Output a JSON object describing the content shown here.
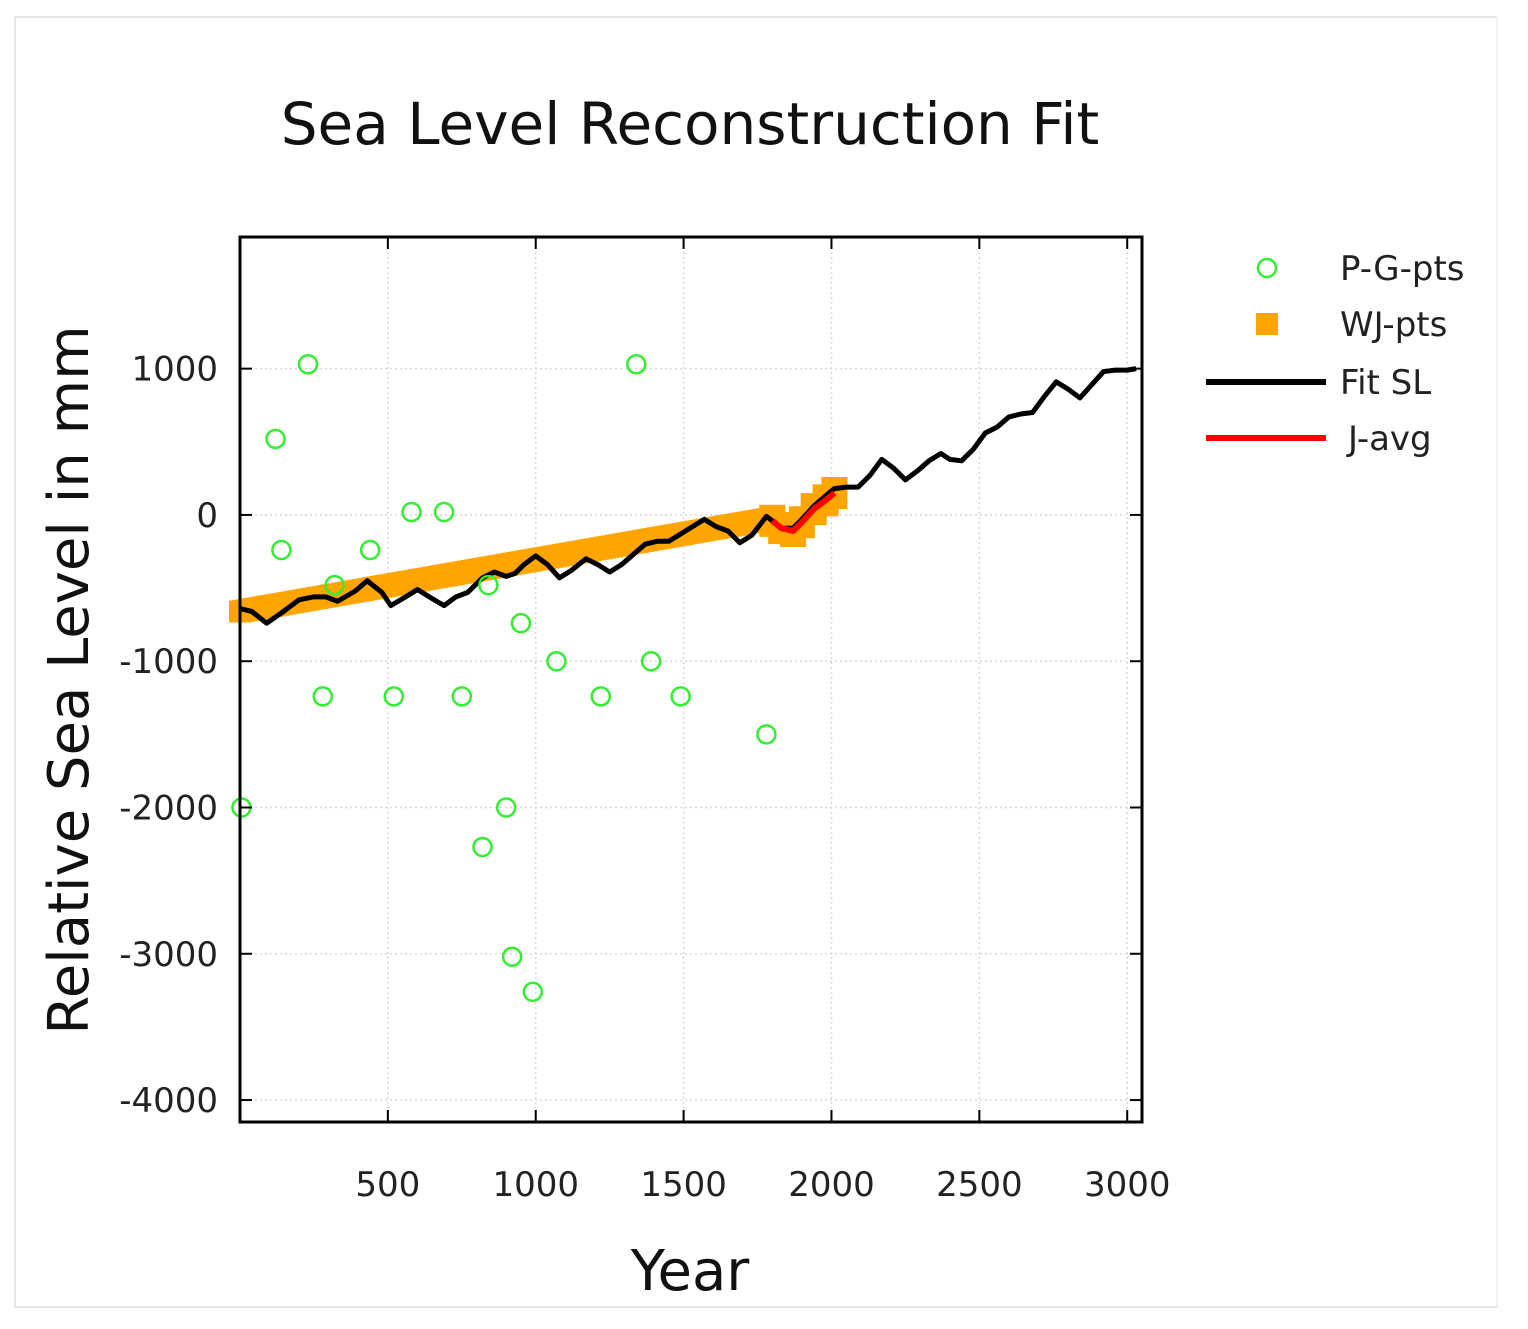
{
  "chart_data": {
    "type": "line",
    "title": "Sea Level Reconstruction Fit",
    "xlabel": "Year",
    "ylabel": "Relative Sea Level in mm",
    "xlim": [
      0,
      3050
    ],
    "ylim": [
      -4150,
      1900
    ],
    "x_ticks": [
      500,
      1000,
      1500,
      2000,
      2500,
      3000
    ],
    "x_tick_labels": [
      "500",
      "1000",
      "1500",
      "2000",
      "2500",
      "3000"
    ],
    "y_ticks": [
      1000,
      0,
      -1000,
      -2000,
      -3000,
      -4000
    ],
    "y_tick_labels": [
      "1000",
      "0",
      "-1000",
      "-2000",
      "-3000",
      "-4000"
    ],
    "grid": true,
    "legend_position": "right",
    "colors": {
      "pg": "#33ee33",
      "wj": "#ffa500",
      "fit": "#000000",
      "javg": "#ff0000"
    },
    "series": [
      {
        "name": "P-G-pts",
        "kind": "scatter-open-circle",
        "points": [
          [
            5,
            -2000
          ],
          [
            120,
            520
          ],
          [
            140,
            -240
          ],
          [
            230,
            1030
          ],
          [
            280,
            -1240
          ],
          [
            320,
            -480
          ],
          [
            440,
            -240
          ],
          [
            520,
            -1240
          ],
          [
            580,
            20
          ],
          [
            690,
            20
          ],
          [
            750,
            -1240
          ],
          [
            820,
            -2270
          ],
          [
            840,
            -480
          ],
          [
            900,
            -2000
          ],
          [
            920,
            -3020
          ],
          [
            950,
            -740
          ],
          [
            990,
            -3260
          ],
          [
            1070,
            -1000
          ],
          [
            1220,
            -1240
          ],
          [
            1340,
            1030
          ],
          [
            1390,
            -1000
          ],
          [
            1490,
            -1240
          ],
          [
            1780,
            -1500
          ]
        ]
      },
      {
        "name": "WJ-pts",
        "kind": "band-square-markers",
        "x_start": 0,
        "y_start": -660,
        "x_end": 1780,
        "y_end": -30
      },
      {
        "name": "Fit SL",
        "kind": "line",
        "points": [
          [
            0,
            -640
          ],
          [
            40,
            -660
          ],
          [
            90,
            -740
          ],
          [
            140,
            -670
          ],
          [
            200,
            -580
          ],
          [
            250,
            -560
          ],
          [
            290,
            -560
          ],
          [
            330,
            -590
          ],
          [
            390,
            -520
          ],
          [
            430,
            -450
          ],
          [
            480,
            -530
          ],
          [
            510,
            -620
          ],
          [
            560,
            -560
          ],
          [
            600,
            -510
          ],
          [
            640,
            -560
          ],
          [
            690,
            -620
          ],
          [
            730,
            -560
          ],
          [
            770,
            -530
          ],
          [
            820,
            -430
          ],
          [
            860,
            -390
          ],
          [
            900,
            -420
          ],
          [
            930,
            -400
          ],
          [
            960,
            -340
          ],
          [
            1000,
            -280
          ],
          [
            1040,
            -340
          ],
          [
            1080,
            -430
          ],
          [
            1120,
            -380
          ],
          [
            1170,
            -300
          ],
          [
            1210,
            -340
          ],
          [
            1250,
            -390
          ],
          [
            1290,
            -340
          ],
          [
            1330,
            -270
          ],
          [
            1370,
            -200
          ],
          [
            1410,
            -180
          ],
          [
            1450,
            -180
          ],
          [
            1490,
            -130
          ],
          [
            1530,
            -80
          ],
          [
            1570,
            -30
          ],
          [
            1610,
            -80
          ],
          [
            1650,
            -110
          ],
          [
            1690,
            -190
          ],
          [
            1730,
            -140
          ],
          [
            1780,
            -10
          ],
          [
            1800,
            -40
          ],
          [
            1830,
            -90
          ],
          [
            1870,
            -90
          ],
          [
            1900,
            -30
          ],
          [
            1940,
            60
          ],
          [
            1980,
            130
          ],
          [
            2010,
            180
          ],
          [
            2050,
            190
          ],
          [
            2090,
            190
          ],
          [
            2130,
            270
          ],
          [
            2170,
            380
          ],
          [
            2210,
            320
          ],
          [
            2250,
            240
          ],
          [
            2290,
            300
          ],
          [
            2330,
            370
          ],
          [
            2370,
            420
          ],
          [
            2400,
            380
          ],
          [
            2440,
            370
          ],
          [
            2480,
            450
          ],
          [
            2520,
            560
          ],
          [
            2560,
            600
          ],
          [
            2600,
            670
          ],
          [
            2640,
            690
          ],
          [
            2680,
            700
          ],
          [
            2720,
            810
          ],
          [
            2760,
            910
          ],
          [
            2800,
            860
          ],
          [
            2840,
            800
          ],
          [
            2880,
            890
          ],
          [
            2920,
            980
          ],
          [
            2960,
            990
          ],
          [
            3000,
            990
          ],
          [
            3030,
            1000
          ]
        ]
      },
      {
        "name": "J-avg",
        "kind": "line",
        "points": [
          [
            1800,
            -40
          ],
          [
            1830,
            -90
          ],
          [
            1870,
            -110
          ],
          [
            1900,
            -50
          ],
          [
            1940,
            40
          ],
          [
            1980,
            100
          ],
          [
            2010,
            150
          ]
        ]
      }
    ]
  }
}
